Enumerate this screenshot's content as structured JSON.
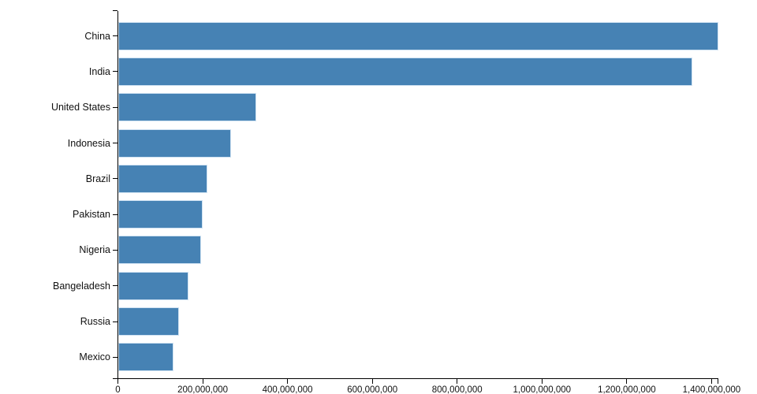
{
  "chart_data": {
    "type": "bar",
    "orientation": "horizontal",
    "title": "",
    "xlabel": "",
    "ylabel": "",
    "categories": [
      "China",
      "India",
      "United States",
      "Indonesia",
      "Brazil",
      "Pakistan",
      "Nigeria",
      "Bangeladesh",
      "Russia",
      "Mexico"
    ],
    "values": [
      1415045928,
      1354051854,
      326766748,
      266794980,
      210867954,
      200813818,
      195875237,
      166368149,
      143964709,
      130759074
    ],
    "xlim": [
      0,
      1415045928
    ],
    "xticks": [
      0,
      200000000,
      400000000,
      600000000,
      800000000,
      1000000000,
      1200000000,
      1400000000
    ],
    "xtick_labels": [
      "0",
      "200,000,000",
      "400,000,000",
      "600,000,000",
      "800,000,000",
      "1,000,000,000",
      "1,200,000,000",
      "1,400,000,000"
    ],
    "grid": false,
    "legend": null,
    "bar_color": "#4682b4",
    "bar_border_color": "#cfe2f2",
    "axis_color": "#000000",
    "text_color": "#111111",
    "background_color": "#ffffff"
  }
}
